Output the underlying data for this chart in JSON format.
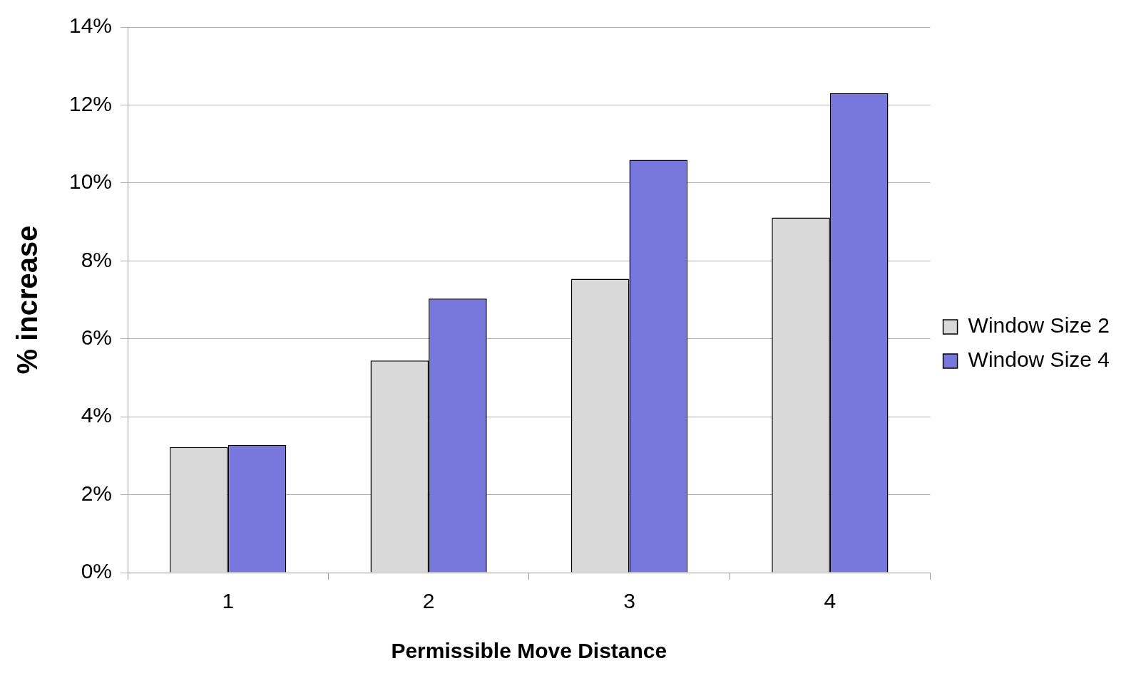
{
  "chart_data": {
    "type": "bar",
    "xlabel": "Permissible Move Distance",
    "ylabel": "% increase",
    "categories": [
      "1",
      "2",
      "3",
      "4"
    ],
    "series": [
      {
        "name": "Window Size 2",
        "color": "#d9d9d9",
        "values": [
          3.22,
          5.44,
          7.54,
          9.11
        ]
      },
      {
        "name": "Window Size 4",
        "color": "#7777dd",
        "values": [
          3.27,
          7.03,
          10.59,
          12.3
        ]
      }
    ],
    "ylim": [
      0,
      14
    ],
    "yticks": [
      {
        "value": 0,
        "label": "0%"
      },
      {
        "value": 2,
        "label": "2%"
      },
      {
        "value": 4,
        "label": "4%"
      },
      {
        "value": 6,
        "label": "6%"
      },
      {
        "value": 8,
        "label": "8%"
      },
      {
        "value": 10,
        "label": "10%"
      },
      {
        "value": 12,
        "label": "12%"
      },
      {
        "value": 14,
        "label": "14%"
      }
    ],
    "grid": "y",
    "legend": "right"
  }
}
